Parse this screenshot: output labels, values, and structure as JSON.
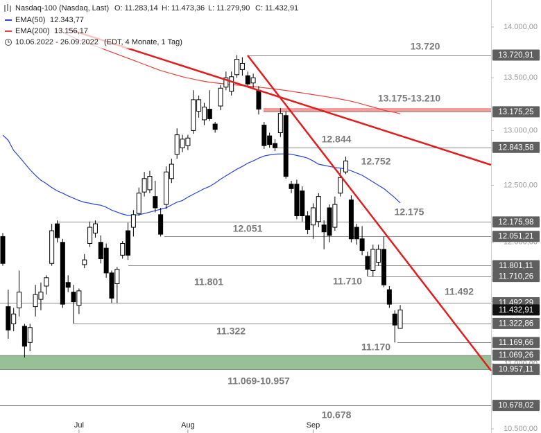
{
  "header": {
    "title": "Nasdaq-100 (Nasdaq, Last)",
    "open": "O: 11.283,14",
    "high": "H: 11.473,36",
    "low": "L: 11.279,90",
    "close": "C: 11.432,91",
    "range": "10.06.2022 - 26.09.2022",
    "range_note": "(EDT, 4 Monate, 1 Tag)"
  },
  "chart_data": {
    "type": "candlestick",
    "log_scale": true,
    "up_color": "#ffffff",
    "down_color": "#000000",
    "categories": [
      null,
      null,
      null,
      null,
      null,
      null,
      null,
      null,
      null,
      null,
      null,
      null,
      null,
      null,
      "Jul",
      null,
      null,
      null,
      null,
      null,
      null,
      null,
      null,
      null,
      null,
      null,
      null,
      null,
      null,
      null,
      null,
      null,
      null,
      null,
      "Aug",
      null,
      null,
      null,
      null,
      null,
      null,
      null,
      null,
      null,
      null,
      null,
      null,
      null,
      null,
      null,
      null,
      null,
      null,
      null,
      null,
      null,
      null,
      "Sep",
      null,
      null,
      null,
      null,
      null,
      null,
      null,
      null,
      null,
      null,
      null,
      null,
      null,
      null,
      null,
      null
    ],
    "open": [
      12050,
      11460,
      11320,
      11450,
      11300,
      11170,
      11460,
      11520,
      11630,
      11820,
      12160,
      12000,
      11660,
      11580,
      11470,
      11810,
      11990,
      12080,
      12000,
      11950,
      11740,
      11650,
      11890,
      12100,
      12130,
      12250,
      12440,
      12460,
      12400,
      12240,
      12330,
      12560,
      12780,
      12840,
      12860,
      13000,
      13180,
      13100,
      13200,
      13060,
      13230,
      13410,
      13370,
      13530,
      13580,
      13520,
      13450,
      13380,
      13050,
      12950,
      12880,
      12980,
      13140,
      12510,
      12510,
      12450,
      12230,
      12150,
      12180,
      12150,
      12300,
      12130,
      12430,
      12620,
      12370,
      12130,
      12030,
      11880,
      11760,
      11830,
      11940,
      11600,
      11400,
      11283.14
    ],
    "high": [
      12080,
      11600,
      11450,
      11760,
      11320,
      11320,
      11640,
      11660,
      11720,
      12160,
      12190,
      12030,
      11720,
      11640,
      11610,
      11900,
      12180,
      12190,
      12060,
      11990,
      11760,
      11790,
      12010,
      12170,
      12280,
      12480,
      12620,
      12630,
      12540,
      12300,
      12670,
      12740,
      13020,
      12960,
      12960,
      13380,
      13330,
      13260,
      13380,
      13080,
      13430,
      13560,
      13560,
      13721,
      13700,
      13560,
      13540,
      13420,
      13080,
      12980,
      12920,
      13210,
      13180,
      12540,
      12550,
      12490,
      12270,
      12340,
      12430,
      12190,
      12330,
      12400,
      12650,
      12760,
      12410,
      12160,
      12140,
      11920,
      11980,
      11980,
      12050,
      11630,
      11430,
      11473.36
    ],
    "low": [
      11800,
      11200,
      11260,
      11380,
      11050,
      11100,
      11380,
      11430,
      11560,
      11800,
      12000,
      11450,
      11580,
      11320,
      11400,
      11780,
      11960,
      12040,
      11820,
      11700,
      11490,
      11490,
      11860,
      11850,
      12050,
      12230,
      12400,
      12430,
      12260,
      12050,
      12290,
      12520,
      12740,
      12800,
      12820,
      12970,
      13120,
      13050,
      13090,
      12980,
      13190,
      13380,
      13330,
      13500,
      13520,
      13410,
      13400,
      13150,
      12830,
      12840,
      12810,
      12940,
      12560,
      12430,
      12200,
      12180,
      12070,
      12030,
      12130,
      11940,
      12000,
      12100,
      12400,
      12600,
      12000,
      11980,
      11890,
      11710,
      11710,
      11800,
      11620,
      11450,
      11170,
      11279.9
    ],
    "close": [
      11820,
      11270,
      11400,
      11580,
      11140,
      11290,
      11560,
      11580,
      11700,
      12100,
      12040,
      11480,
      11620,
      11500,
      11590,
      11850,
      12130,
      12160,
      11860,
      11740,
      11530,
      11770,
      11990,
      11890,
      12240,
      12430,
      12560,
      12580,
      12300,
      12070,
      12620,
      12690,
      12960,
      12920,
      12930,
      13290,
      13290,
      13220,
      13110,
      13010,
      13400,
      13500,
      13510,
      13680,
      13640,
      13440,
      13500,
      13200,
      12860,
      12870,
      12840,
      13160,
      12580,
      12470,
      12230,
      12230,
      12110,
      12300,
      12400,
      12090,
      12060,
      12330,
      12570,
      12720,
      12030,
      12030,
      11930,
      11770,
      11940,
      11940,
      11640,
      11480,
      11310,
      11432.91
    ],
    "series": [
      {
        "name": "EMA(50)",
        "value_label": "12.343,77",
        "color": "#2a45d8",
        "values": [
          12957,
          12910,
          12815,
          12760,
          12700,
          12640,
          12590,
          12545,
          12515,
          12480,
          12450,
          12430,
          12405,
          12385,
          12365,
          12349,
          12340,
          12330,
          12323,
          12305,
          12280,
          12262,
          12245,
          12233,
          12236,
          12239,
          12250,
          12262,
          12275,
          12288,
          12300,
          12325,
          12350,
          12365,
          12395,
          12420,
          12445,
          12470,
          12490,
          12520,
          12555,
          12585,
          12615,
          12645,
          12670,
          12700,
          12720,
          12745,
          12765,
          12775,
          12782,
          12784,
          12784,
          12782,
          12770,
          12760,
          12745,
          12720,
          12690,
          12680,
          12670,
          12660,
          12655,
          12645,
          12630,
          12610,
          12590,
          12560,
          12530,
          12500,
          12470,
          12430,
          12390,
          12343.77
        ]
      },
      {
        "name": "EMA(200)",
        "value_label": "13.156,17",
        "color": "#e8423c",
        "values": [
          null,
          null,
          null,
          null,
          null,
          null,
          null,
          null,
          null,
          null,
          13972,
          13950,
          13920,
          13895,
          13870,
          13850,
          13830,
          13810,
          13790,
          13770,
          13750,
          13730,
          13710,
          13690,
          13670,
          13650,
          13630,
          13610,
          13590,
          13570,
          13555,
          13540,
          13525,
          13510,
          13498,
          13487,
          13476,
          13466,
          13458,
          13451,
          13445,
          13440,
          13435,
          13430,
          13425,
          13420,
          13415,
          13410,
          13404,
          13398,
          13392,
          13385,
          13378,
          13370,
          13362,
          13354,
          13346,
          13338,
          13330,
          13322,
          13314,
          13305,
          13296,
          13286,
          13275,
          13262,
          13248,
          13234,
          13220,
          13205,
          13190,
          13178,
          13170,
          13156.17
        ]
      }
    ],
    "ylim": [
      10469,
      14273
    ],
    "yticks": [
      {
        "value": 10500,
        "label": "10.500,00"
      },
      {
        "value": 11000,
        "label": "11.000,00"
      },
      {
        "value": 11500,
        "label": "11.500,00"
      },
      {
        "value": 12000,
        "label": "12.000,00"
      },
      {
        "value": 12500,
        "label": "12.500,00"
      },
      {
        "value": 13000,
        "label": "13.000,00"
      },
      {
        "value": 13500,
        "label": "13.500,00"
      },
      {
        "value": 14000,
        "label": "14.000,00"
      }
    ],
    "levels": [
      {
        "value": 13720.91,
        "label": "13.720,91"
      },
      {
        "value": 13175.25,
        "label": "13.175,25"
      },
      {
        "value": 12843.58,
        "label": "12.843,58"
      },
      {
        "value": 12175.98,
        "label": "12.175,98"
      },
      {
        "value": 12051.21,
        "label": "12.051,21"
      },
      {
        "value": 11801.11,
        "label": "11.801,11"
      },
      {
        "value": 11710.26,
        "label": "11.710,26"
      },
      {
        "value": 11492.29,
        "label": "11.492,29"
      },
      {
        "value": 11322.86,
        "label": "11.322,86"
      },
      {
        "value": 11169.66,
        "label": "11.169,66"
      },
      {
        "value": 11069.26,
        "label": "11.069,26"
      },
      {
        "value": 10957.11,
        "label": "10.957,11"
      },
      {
        "value": 10678.02,
        "label": "10.678,02"
      }
    ],
    "current_price": {
      "value": 11432.91,
      "label": "11.432,91"
    },
    "zones": [
      {
        "from": 13175.25,
        "to": 13210,
        "color": "#f28a8a"
      },
      {
        "from": 11069.26,
        "to": 10957.11,
        "color": "#8cb98c"
      }
    ],
    "annotations": [
      "13.720",
      "13.175-13.210",
      "12.844",
      "12.752",
      "12.175",
      "12.051",
      "11.801",
      "11.710",
      "11.492",
      "11.322",
      "11.170",
      "11.069-10.957",
      "10.678"
    ]
  }
}
